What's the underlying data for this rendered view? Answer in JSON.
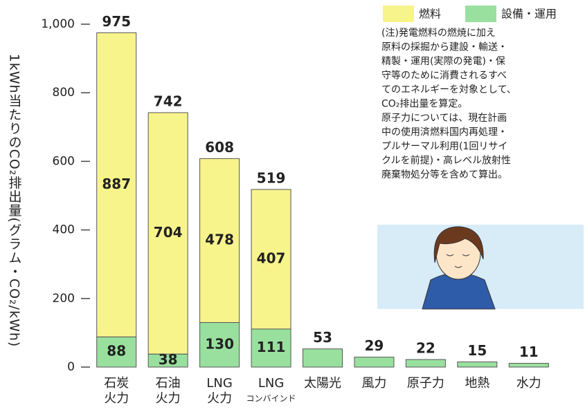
{
  "chart_data": {
    "type": "stacked_bar",
    "y_label": "1kWh当たりのCO₂排出量(グラム・CO₂/kWh)",
    "categories": [
      [
        "石炭",
        "火力"
      ],
      [
        "石油",
        "火力"
      ],
      [
        "LNG",
        "火力"
      ],
      [
        "LNG",
        "コンバインド"
      ],
      [
        "太陽光"
      ],
      [
        "風力"
      ],
      [
        "原子力"
      ],
      [
        "地熱"
      ],
      [
        "水力"
      ]
    ],
    "series": [
      {
        "name": "設備・運用",
        "color": "#99e09f",
        "values": [
          88,
          38,
          130,
          111,
          53,
          29,
          22,
          15,
          11
        ]
      },
      {
        "name": "燃料",
        "color": "#f8f48c",
        "values": [
          887,
          704,
          478,
          407,
          null,
          null,
          null,
          null,
          null
        ]
      }
    ],
    "totals": [
      975,
      742,
      608,
      519,
      53,
      29,
      22,
      15,
      11
    ],
    "ylim": [
      0,
      1000
    ],
    "yticks": [
      0,
      200,
      400,
      600,
      800,
      {
        "value": 1000,
        "label": "1,000"
      }
    ],
    "note": [
      "(注)発電燃料の燃焼に加え",
      "原料の採掘から建設・輸送・",
      "精製・運用(実際の発電)・保",
      "守等のために消費されるすべ",
      "てのエネルギーを対象として、",
      "CO₂排出量を算定。",
      "原子力については、現在計画",
      "中の使用済燃料国内再処理・",
      "プルサーマル利用(1回リサイ",
      "クルを前提)・高レベル放射性",
      "廃棄物処分等を含めて算出。"
    ]
  }
}
